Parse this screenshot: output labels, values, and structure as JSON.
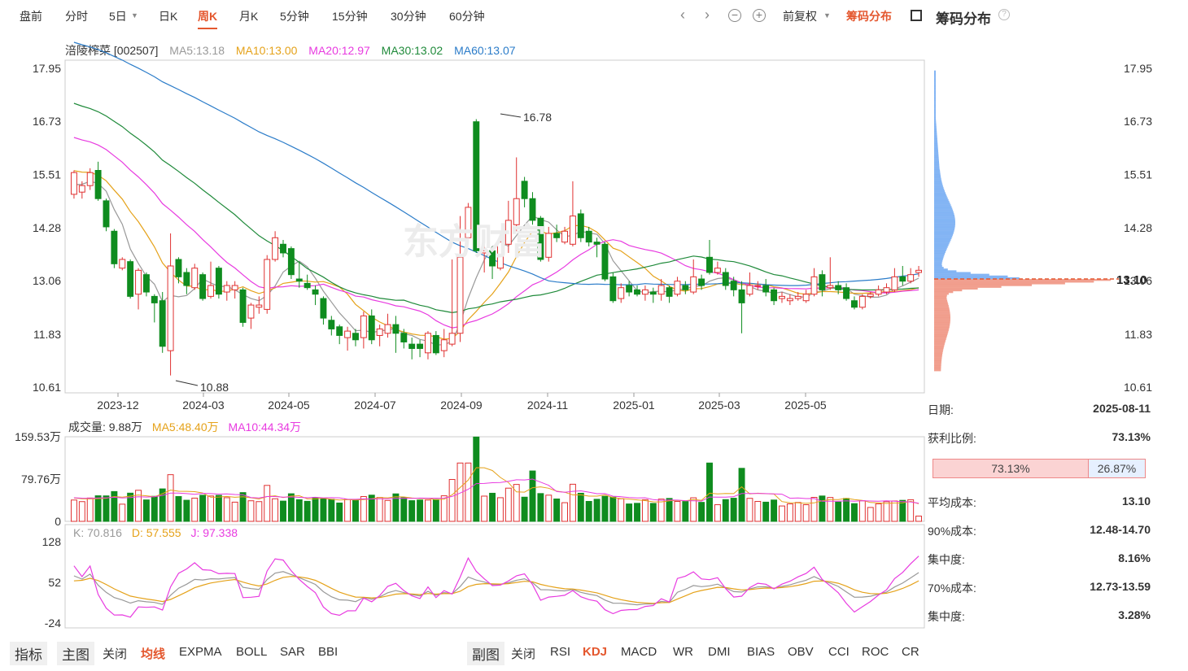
{
  "tabs": [
    "盘前",
    "分时",
    "5日",
    "日K",
    "周K",
    "月K",
    "5分钟",
    "15分钟",
    "30分钟",
    "60分钟"
  ],
  "active_tab": "周K",
  "toolbar": {
    "prev_icon": "chevron-left-icon",
    "next_icon": "chevron-right-icon",
    "zoom_out_icon": "zoom-out-icon",
    "zoom_in_icon": "zoom-in-icon",
    "adjust": "前复权",
    "chip_btn": "筹码分布",
    "chip_title": "筹码分布",
    "help_icon": "question-icon"
  },
  "stock": {
    "name": "涪陵榨菜 [002507]",
    "ma5": "MA5:13.18",
    "ma10": "MA10:13.00",
    "ma20": "MA20:12.97",
    "ma30": "MA30:13.02",
    "ma60": "MA60:13.07"
  },
  "colors": {
    "up": "#e03131",
    "down": "#0f8c1f",
    "ma5": "#999999",
    "ma10": "#e5a21a",
    "ma20": "#e83be0",
    "ma30": "#1f8a3a",
    "ma60": "#2b7cc9",
    "accent": "#e4572e"
  },
  "chart_data": {
    "type": "candlestick",
    "y_ticks": [
      "17.95",
      "16.73",
      "15.51",
      "14.28",
      "13.06",
      "11.83",
      "10.61"
    ],
    "ylim": [
      10.61,
      17.95
    ],
    "x_labels": [
      "2023-12",
      "2024-03",
      "2024-05",
      "2024-07",
      "2024-09",
      "2024-11",
      "2025-01",
      "2025-03",
      "2025-05"
    ],
    "high_label": "16.78",
    "low_label": "10.88",
    "candles": [
      [
        15.05,
        15.55,
        15.6,
        14.95
      ],
      [
        15.1,
        15.25,
        15.35,
        14.95
      ],
      [
        15.25,
        15.55,
        15.65,
        15.15
      ],
      [
        15.6,
        14.95,
        15.8,
        14.9
      ],
      [
        14.9,
        14.3,
        14.95,
        14.2
      ],
      [
        14.2,
        13.45,
        14.25,
        13.35
      ],
      [
        13.35,
        13.55,
        13.6,
        13.3
      ],
      [
        13.5,
        12.7,
        13.55,
        12.65
      ],
      [
        12.75,
        13.3,
        13.35,
        12.4
      ],
      [
        13.2,
        12.8,
        13.25,
        12.7
      ],
      [
        12.7,
        12.55,
        12.75,
        12.1
      ],
      [
        12.6,
        11.55,
        12.8,
        11.4
      ],
      [
        11.45,
        13.4,
        14.15,
        10.88
      ],
      [
        13.55,
        13.15,
        13.6,
        13.0
      ],
      [
        13.25,
        12.95,
        13.35,
        12.75
      ],
      [
        12.9,
        13.35,
        13.45,
        12.85
      ],
      [
        13.2,
        12.65,
        13.25,
        12.6
      ],
      [
        12.7,
        12.95,
        13.5,
        12.65
      ],
      [
        13.35,
        12.75,
        13.4,
        12.65
      ],
      [
        12.8,
        12.95,
        13.05,
        12.6
      ],
      [
        12.85,
        12.95,
        13.05,
        12.65
      ],
      [
        12.85,
        12.1,
        12.9,
        12.0
      ],
      [
        12.2,
        12.5,
        12.55,
        11.95
      ],
      [
        12.45,
        12.5,
        12.7,
        12.3
      ],
      [
        12.4,
        13.55,
        13.65,
        12.3
      ],
      [
        13.55,
        14.05,
        14.2,
        13.5
      ],
      [
        13.9,
        13.7,
        14.0,
        13.6
      ],
      [
        13.8,
        13.2,
        13.85,
        13.1
      ],
      [
        13.1,
        13.05,
        13.5,
        12.9
      ],
      [
        13.0,
        12.9,
        13.2,
        12.85
      ],
      [
        12.85,
        12.75,
        12.95,
        12.5
      ],
      [
        12.65,
        12.2,
        12.7,
        12.05
      ],
      [
        12.15,
        11.95,
        12.25,
        11.8
      ],
      [
        12.0,
        11.8,
        12.05,
        11.6
      ],
      [
        11.75,
        11.9,
        12.0,
        11.45
      ],
      [
        11.85,
        11.7,
        11.95,
        11.55
      ],
      [
        11.75,
        12.25,
        12.35,
        11.5
      ],
      [
        12.25,
        11.7,
        12.4,
        11.6
      ],
      [
        11.8,
        11.95,
        12.05,
        11.55
      ],
      [
        11.85,
        12.05,
        12.3,
        11.75
      ],
      [
        12.05,
        11.85,
        12.25,
        11.4
      ],
      [
        11.85,
        11.65,
        11.95,
        11.5
      ],
      [
        11.6,
        11.5,
        11.75,
        11.25
      ],
      [
        11.6,
        11.5,
        11.7,
        11.3
      ],
      [
        11.4,
        11.85,
        11.9,
        11.25
      ],
      [
        11.8,
        11.4,
        11.9,
        11.35
      ],
      [
        11.45,
        11.7,
        11.95,
        11.3
      ],
      [
        11.6,
        11.85,
        13.55,
        11.55
      ],
      [
        11.85,
        13.6,
        14.55,
        11.65
      ],
      [
        14.05,
        14.75,
        14.85,
        13.95
      ],
      [
        16.72,
        13.75,
        16.78,
        13.7
      ],
      [
        13.7,
        13.75,
        13.95,
        13.25
      ],
      [
        13.75,
        13.4,
        13.85,
        13.1
      ],
      [
        13.35,
        13.95,
        14.0,
        13.3
      ],
      [
        13.9,
        14.45,
        14.9,
        13.7
      ],
      [
        14.35,
        14.95,
        15.9,
        14.2
      ],
      [
        15.35,
        14.95,
        15.45,
        14.75
      ],
      [
        14.95,
        14.45,
        15.1,
        14.35
      ],
      [
        14.5,
        13.55,
        14.55,
        13.5
      ],
      [
        13.6,
        14.15,
        14.3,
        13.5
      ],
      [
        14.15,
        14.05,
        14.35,
        13.95
      ],
      [
        13.95,
        14.2,
        14.3,
        13.9
      ],
      [
        13.9,
        14.55,
        15.35,
        13.85
      ],
      [
        14.6,
        14.05,
        14.7,
        13.95
      ],
      [
        14.2,
        13.95,
        14.3,
        13.85
      ],
      [
        13.95,
        13.9,
        14.05,
        13.6
      ],
      [
        13.9,
        13.1,
        13.95,
        13.05
      ],
      [
        13.15,
        12.6,
        13.25,
        12.55
      ],
      [
        12.65,
        12.9,
        13.0,
        12.55
      ],
      [
        12.95,
        12.8,
        13.05,
        12.7
      ],
      [
        12.85,
        12.75,
        12.95,
        12.7
      ],
      [
        12.75,
        12.85,
        12.95,
        12.6
      ],
      [
        12.8,
        12.75,
        12.9,
        12.55
      ],
      [
        12.75,
        12.95,
        13.1,
        12.6
      ],
      [
        12.9,
        12.7,
        12.95,
        12.55
      ],
      [
        12.75,
        13.05,
        13.15,
        12.7
      ],
      [
        12.95,
        12.85,
        13.05,
        12.75
      ],
      [
        12.8,
        13.15,
        13.55,
        12.75
      ],
      [
        13.1,
        12.95,
        13.2,
        12.85
      ],
      [
        13.6,
        13.25,
        14.0,
        13.2
      ],
      [
        13.25,
        13.35,
        13.5,
        13.2
      ],
      [
        13.25,
        12.95,
        13.35,
        12.85
      ],
      [
        13.05,
        12.85,
        13.15,
        12.7
      ],
      [
        12.85,
        12.55,
        13.05,
        11.85
      ],
      [
        12.75,
        12.95,
        13.25,
        12.7
      ],
      [
        12.95,
        12.95,
        13.05,
        12.85
      ],
      [
        12.95,
        12.8,
        13.1,
        12.7
      ],
      [
        12.85,
        12.6,
        12.9,
        12.5
      ],
      [
        12.65,
        12.7,
        12.8,
        12.55
      ],
      [
        12.6,
        12.65,
        12.75,
        12.5
      ],
      [
        12.65,
        12.7,
        12.8,
        12.6
      ],
      [
        12.6,
        12.75,
        12.85,
        12.55
      ],
      [
        12.75,
        13.15,
        13.35,
        12.7
      ],
      [
        13.2,
        12.85,
        13.3,
        12.7
      ],
      [
        12.9,
        12.95,
        13.6,
        12.85
      ],
      [
        12.95,
        12.85,
        13.05,
        12.75
      ],
      [
        12.9,
        12.65,
        13.0,
        12.6
      ],
      [
        12.6,
        12.45,
        12.7,
        12.4
      ],
      [
        12.45,
        12.7,
        12.75,
        12.4
      ],
      [
        12.7,
        12.75,
        12.8,
        12.65
      ],
      [
        12.75,
        12.85,
        12.95,
        12.7
      ],
      [
        12.8,
        12.9,
        13.0,
        12.75
      ],
      [
        12.85,
        13.15,
        13.35,
        12.8
      ],
      [
        13.15,
        13.05,
        13.4,
        12.95
      ],
      [
        13.05,
        13.2,
        13.35,
        13.0
      ],
      [
        13.25,
        13.3,
        13.4,
        13.15
      ]
    ],
    "volume": {
      "label": "成交量: 9.88万",
      "ma5": "MA5:48.40万",
      "ma10": "MA10:44.34万",
      "y_ticks": [
        "159.53万",
        "79.76万",
        "0"
      ],
      "ylim": [
        0,
        159.53
      ]
    },
    "kdj": {
      "k": "K: 70.816",
      "d": "D: 57.555",
      "j": "J: 97.338",
      "y_ticks": [
        "128",
        "52",
        "-24"
      ],
      "ylim": [
        -24,
        128
      ]
    },
    "chip": {
      "avg_cost": "13.10",
      "y_ticks": [
        "17.95",
        "16.73",
        "15.51",
        "14.28",
        "13.06",
        "11.83",
        "10.61"
      ]
    }
  },
  "chip_info": {
    "date_label": "日期:",
    "date": "2025-08-11",
    "profit_label": "获利比例:",
    "profit": "73.13%",
    "bar_left": "73.13%",
    "bar_right": "26.87%",
    "avg_label": "平均成本:",
    "avg": "13.10",
    "c90_label": "90%成本:",
    "c90": "12.48-14.70",
    "conc90_label": "集中度:",
    "conc90": "8.16%",
    "c70_label": "70%成本:",
    "c70": "12.73-13.59",
    "conc70_label": "集中度:",
    "conc70": "3.28%"
  },
  "bottom": {
    "indicator": "指标",
    "main": "主图",
    "close1": "关闭",
    "main_items": [
      "均线",
      "EXPMA",
      "BOLL",
      "SAR",
      "BBI"
    ],
    "main_active": "均线",
    "sub": "副图",
    "close2": "关闭",
    "sub_items": [
      "RSI",
      "KDJ",
      "MACD",
      "WR",
      "DMI",
      "BIAS",
      "OBV",
      "CCI",
      "ROC",
      "CR"
    ],
    "sub_active": "KDJ"
  }
}
